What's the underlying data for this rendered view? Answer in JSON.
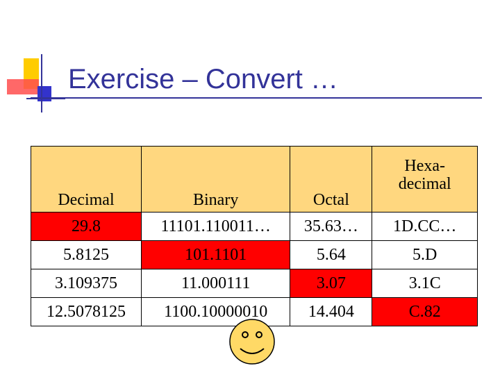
{
  "title": "Exercise – Convert …",
  "colors": {
    "title": "#333399",
    "header_fill": "#ffd77f",
    "highlight": "#ff0000",
    "smiley_fill": "#ffd966",
    "logo_yellow": "#ffcc00",
    "logo_red": "#ff4d4d",
    "logo_blue": "#3333cc"
  },
  "icons": {
    "logo": "slide-template-logo-icon",
    "smiley": "smiley-face-icon"
  },
  "table": {
    "headers": [
      "Decimal",
      "Binary",
      "Octal",
      "Hexa-decimal"
    ],
    "header_hex_line1": "Hexa-",
    "header_hex_line2": "decimal",
    "rows": [
      {
        "decimal": "29.8",
        "binary": "11101.110011…",
        "octal": "35.63…",
        "hex": "1D.CC…",
        "given": "decimal"
      },
      {
        "decimal": "5.8125",
        "binary": "101.1101",
        "octal": "5.64",
        "hex": "5.D",
        "given": "binary"
      },
      {
        "decimal": "3.109375",
        "binary": "11.000111",
        "octal": "3.07",
        "hex": "3.1C",
        "given": "octal"
      },
      {
        "decimal": "12.5078125",
        "binary": "1100.10000010",
        "octal": "14.404",
        "hex": "C.82",
        "given": "hex"
      }
    ]
  }
}
